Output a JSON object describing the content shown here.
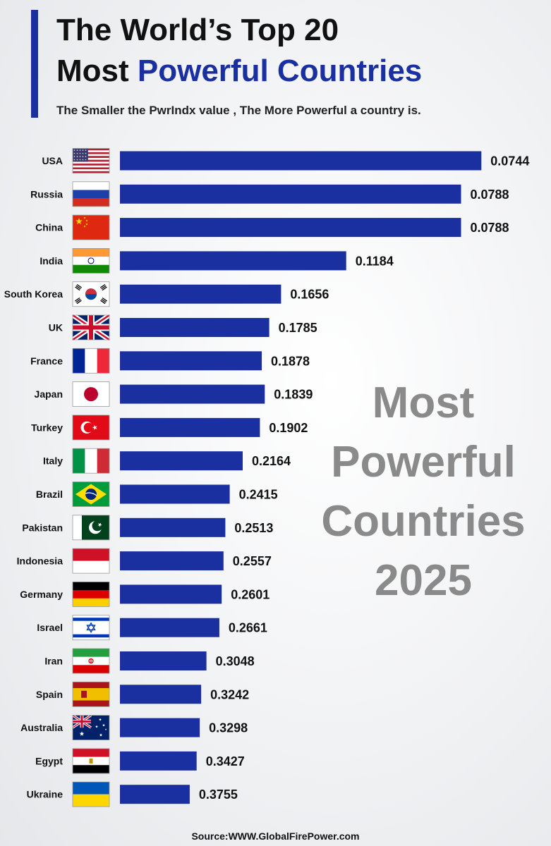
{
  "header": {
    "title_line1": "The World’s Top 20",
    "title_line2_a": "Most ",
    "title_line2_b": "Powerful Countries",
    "subtitle": "The Smaller the PwrIndx value , The More Powerful a country is."
  },
  "watermark": {
    "line1": "Most",
    "line2": "Powerful",
    "line3": "Countries",
    "line4": "2025"
  },
  "source": "Source:WWW.GlobalFirePower.com",
  "colors": {
    "bar": "#1a2fa0",
    "accent": "#1a2fa0",
    "watermark": "#8a8a8a"
  },
  "chart_data": {
    "type": "bar",
    "orientation": "horizontal",
    "note": "bar length inversely proportional to PwrIndx value",
    "categories": [
      "USA",
      "Russia",
      "China",
      "India",
      "South Korea",
      "UK",
      "France",
      "Japan",
      "Turkey",
      "Italy",
      "Brazil",
      "Pakistan",
      "Indonesia",
      "Germany",
      "Israel",
      "Iran",
      "Spain",
      "Australia",
      "Egypt",
      "Ukraine"
    ],
    "values": [
      0.0744,
      0.0788,
      0.0788,
      0.1184,
      0.1656,
      0.1785,
      0.1878,
      0.1839,
      0.1902,
      0.2164,
      0.2415,
      0.2513,
      0.2557,
      0.2601,
      0.2661,
      0.3048,
      0.3242,
      0.3298,
      0.3427,
      0.3755
    ],
    "value_labels": [
      "0.0744",
      "0.0788",
      "0.0788",
      "0.1184",
      "0.1656",
      "0.1785",
      "0.1878",
      "0.1839",
      "0.1902",
      "0.2164",
      "0.2415",
      "0.2513",
      "0.2557",
      "0.2601",
      "0.2661",
      "0.3048",
      "0.3242",
      "0.3298",
      "0.3427",
      "0.3755"
    ],
    "flags": [
      "usa-flag-icon",
      "russia-flag-icon",
      "china-flag-icon",
      "india-flag-icon",
      "south-korea-flag-icon",
      "uk-flag-icon",
      "france-flag-icon",
      "japan-flag-icon",
      "turkey-flag-icon",
      "italy-flag-icon",
      "brazil-flag-icon",
      "pakistan-flag-icon",
      "indonesia-flag-icon",
      "germany-flag-icon",
      "israel-flag-icon",
      "iran-flag-icon",
      "spain-flag-icon",
      "australia-flag-icon",
      "egypt-flag-icon",
      "ukraine-flag-icon"
    ]
  }
}
